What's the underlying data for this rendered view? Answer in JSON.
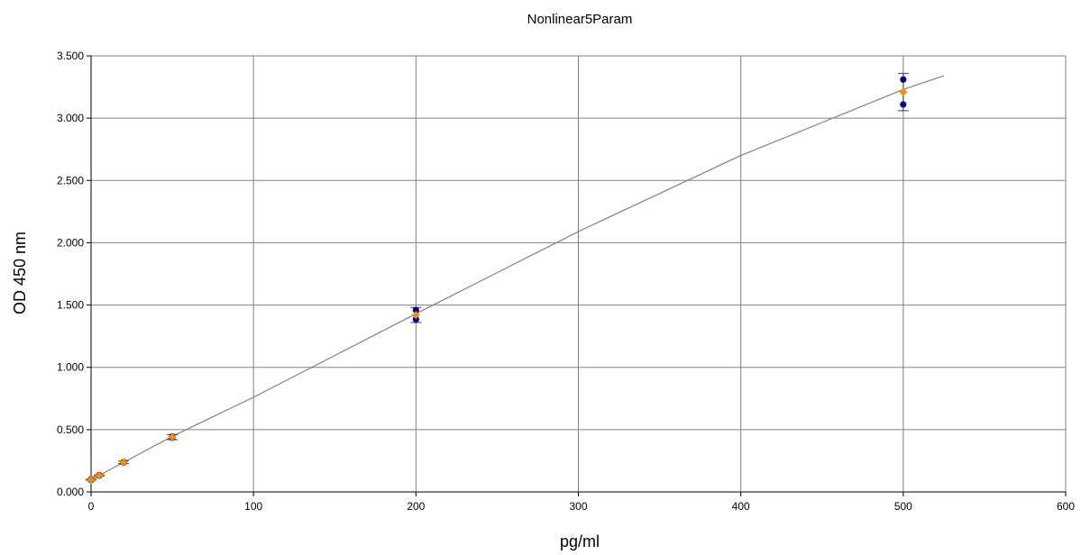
{
  "chart_data": {
    "type": "scatter",
    "title": "Nonlinear5Param",
    "xlabel": "pg/ml",
    "ylabel": "OD 450 nm",
    "xlim": [
      0,
      600
    ],
    "ylim": [
      0,
      3.5
    ],
    "x_ticks": [
      "0",
      "100",
      "200",
      "300",
      "400",
      "500",
      "600"
    ],
    "y_ticks": [
      "0.000",
      "0.500",
      "1.000",
      "1.500",
      "2.000",
      "2.500",
      "3.000",
      "3.500"
    ],
    "grid": true,
    "colors": {
      "replicates": "#00008B",
      "means": "#FF8C00",
      "fit": "#808080",
      "grid": "#808080",
      "errorbar": "#404040"
    },
    "replicates": [
      {
        "x": 0,
        "y": 0.095
      },
      {
        "x": 0,
        "y": 0.102
      },
      {
        "x": 5,
        "y": 0.13
      },
      {
        "x": 5,
        "y": 0.135
      },
      {
        "x": 20,
        "y": 0.235
      },
      {
        "x": 20,
        "y": 0.24
      },
      {
        "x": 50,
        "y": 0.435
      },
      {
        "x": 50,
        "y": 0.445
      },
      {
        "x": 200,
        "y": 1.46
      },
      {
        "x": 200,
        "y": 1.385
      },
      {
        "x": 500,
        "y": 3.31
      },
      {
        "x": 500,
        "y": 3.11
      }
    ],
    "means": [
      {
        "x": 0,
        "y": 0.098,
        "err": 0.005
      },
      {
        "x": 5,
        "y": 0.132,
        "err": 0.005
      },
      {
        "x": 20,
        "y": 0.237,
        "err": 0.01
      },
      {
        "x": 50,
        "y": 0.44,
        "err": 0.02
      },
      {
        "x": 200,
        "y": 1.42,
        "err": 0.06
      },
      {
        "x": 500,
        "y": 3.21,
        "err": 0.15
      }
    ],
    "fit_curve": {
      "x": [
        0,
        25,
        50,
        75,
        100,
        150,
        200,
        250,
        300,
        350,
        400,
        450,
        500,
        525
      ],
      "y": [
        0.098,
        0.272,
        0.446,
        0.603,
        0.76,
        1.095,
        1.43,
        1.76,
        2.09,
        2.395,
        2.7,
        2.965,
        3.23,
        3.34
      ]
    }
  }
}
